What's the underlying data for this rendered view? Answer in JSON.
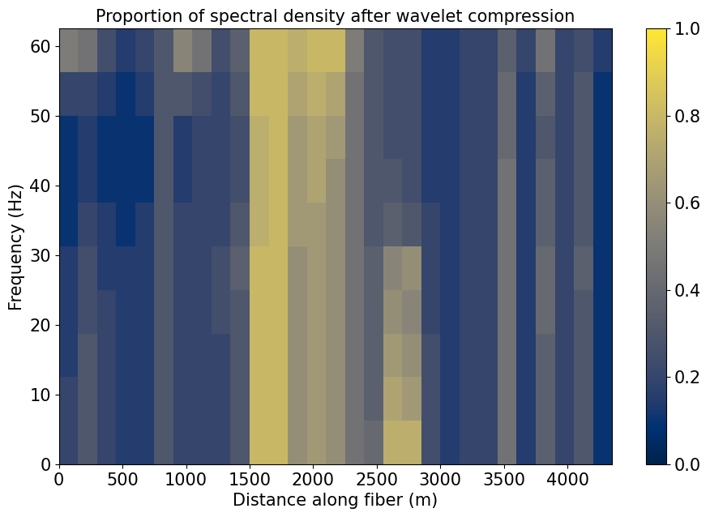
{
  "chart_data": {
    "type": "heatmap",
    "title": "Proportion of spectral density after wavelet compression",
    "x_label": "Distance along fiber (m)",
    "y_label": "Frequency (Hz)",
    "xlim": [
      0,
      4350
    ],
    "ylim": [
      0,
      62.5
    ],
    "xticks": [
      0,
      500,
      1000,
      1500,
      2000,
      2500,
      3000,
      3500,
      4000
    ],
    "yticks": [
      0,
      10,
      20,
      30,
      40,
      50,
      60
    ],
    "x_edges": [
      0,
      150,
      300,
      450,
      600,
      750,
      900,
      1050,
      1200,
      1350,
      1500,
      1650,
      1800,
      1950,
      2100,
      2250,
      2400,
      2550,
      2700,
      2850,
      3000,
      3150,
      3300,
      3450,
      3600,
      3750,
      3900,
      4050,
      4200,
      4350
    ],
    "y_edges": [
      0,
      6.25,
      12.5,
      18.75,
      25,
      31.25,
      37.5,
      43.75,
      50,
      56.25,
      62.5
    ],
    "cells": [
      [
        0.2,
        0.3,
        0.2,
        0.15,
        0.15,
        0.3,
        0.2,
        0.2,
        0.2,
        0.3,
        0.8,
        0.8,
        0.6,
        0.65,
        0.6,
        0.45,
        0.4,
        0.75,
        0.75,
        0.25,
        0.15,
        0.2,
        0.2,
        0.45,
        0.15,
        0.35,
        0.2,
        0.3,
        0.1
      ],
      [
        0.2,
        0.3,
        0.2,
        0.15,
        0.15,
        0.3,
        0.2,
        0.2,
        0.2,
        0.3,
        0.8,
        0.8,
        0.6,
        0.65,
        0.6,
        0.45,
        0.35,
        0.7,
        0.65,
        0.25,
        0.15,
        0.2,
        0.2,
        0.45,
        0.15,
        0.35,
        0.2,
        0.3,
        0.1
      ],
      [
        0.15,
        0.3,
        0.2,
        0.15,
        0.15,
        0.3,
        0.2,
        0.2,
        0.2,
        0.3,
        0.8,
        0.8,
        0.6,
        0.65,
        0.6,
        0.45,
        0.35,
        0.65,
        0.6,
        0.25,
        0.15,
        0.2,
        0.2,
        0.45,
        0.15,
        0.35,
        0.2,
        0.3,
        0.1
      ],
      [
        0.15,
        0.25,
        0.2,
        0.15,
        0.15,
        0.3,
        0.2,
        0.2,
        0.25,
        0.3,
        0.8,
        0.8,
        0.6,
        0.65,
        0.6,
        0.45,
        0.35,
        0.6,
        0.55,
        0.2,
        0.15,
        0.2,
        0.2,
        0.45,
        0.15,
        0.4,
        0.2,
        0.3,
        0.1
      ],
      [
        0.15,
        0.25,
        0.15,
        0.15,
        0.15,
        0.3,
        0.2,
        0.2,
        0.25,
        0.35,
        0.8,
        0.8,
        0.6,
        0.65,
        0.6,
        0.45,
        0.35,
        0.55,
        0.6,
        0.2,
        0.15,
        0.2,
        0.2,
        0.45,
        0.15,
        0.4,
        0.2,
        0.35,
        0.1
      ],
      [
        0.1,
        0.2,
        0.15,
        0.1,
        0.15,
        0.3,
        0.2,
        0.2,
        0.2,
        0.3,
        0.75,
        0.8,
        0.65,
        0.65,
        0.6,
        0.45,
        0.3,
        0.35,
        0.3,
        0.2,
        0.15,
        0.2,
        0.2,
        0.45,
        0.15,
        0.35,
        0.2,
        0.3,
        0.1
      ],
      [
        0.1,
        0.15,
        0.1,
        0.1,
        0.1,
        0.3,
        0.15,
        0.2,
        0.2,
        0.25,
        0.75,
        0.8,
        0.65,
        0.7,
        0.6,
        0.45,
        0.3,
        0.3,
        0.25,
        0.15,
        0.15,
        0.2,
        0.2,
        0.45,
        0.15,
        0.35,
        0.2,
        0.3,
        0.1
      ],
      [
        0.1,
        0.15,
        0.1,
        0.1,
        0.1,
        0.3,
        0.15,
        0.2,
        0.2,
        0.25,
        0.75,
        0.8,
        0.65,
        0.7,
        0.65,
        0.45,
        0.3,
        0.25,
        0.25,
        0.15,
        0.15,
        0.2,
        0.2,
        0.4,
        0.15,
        0.3,
        0.2,
        0.3,
        0.1
      ],
      [
        0.2,
        0.2,
        0.15,
        0.1,
        0.15,
        0.3,
        0.3,
        0.25,
        0.2,
        0.3,
        0.8,
        0.8,
        0.7,
        0.75,
        0.7,
        0.45,
        0.3,
        0.25,
        0.25,
        0.15,
        0.15,
        0.2,
        0.2,
        0.4,
        0.15,
        0.35,
        0.2,
        0.3,
        0.1
      ],
      [
        0.5,
        0.45,
        0.25,
        0.15,
        0.2,
        0.3,
        0.55,
        0.45,
        0.25,
        0.35,
        0.8,
        0.8,
        0.75,
        0.8,
        0.8,
        0.5,
        0.3,
        0.25,
        0.25,
        0.15,
        0.15,
        0.2,
        0.2,
        0.35,
        0.2,
        0.45,
        0.2,
        0.25,
        0.15
      ]
    ],
    "colorbar": {
      "range": [
        0,
        1
      ],
      "ticks": [
        {
          "value": 0,
          "label": "0.0"
        },
        {
          "value": 0.2,
          "label": "0.2"
        },
        {
          "value": 0.4,
          "label": "0.4"
        },
        {
          "value": 0.6,
          "label": "0.6"
        },
        {
          "value": 0.8,
          "label": "0.8"
        },
        {
          "value": 1,
          "label": "1.0"
        }
      ]
    }
  }
}
